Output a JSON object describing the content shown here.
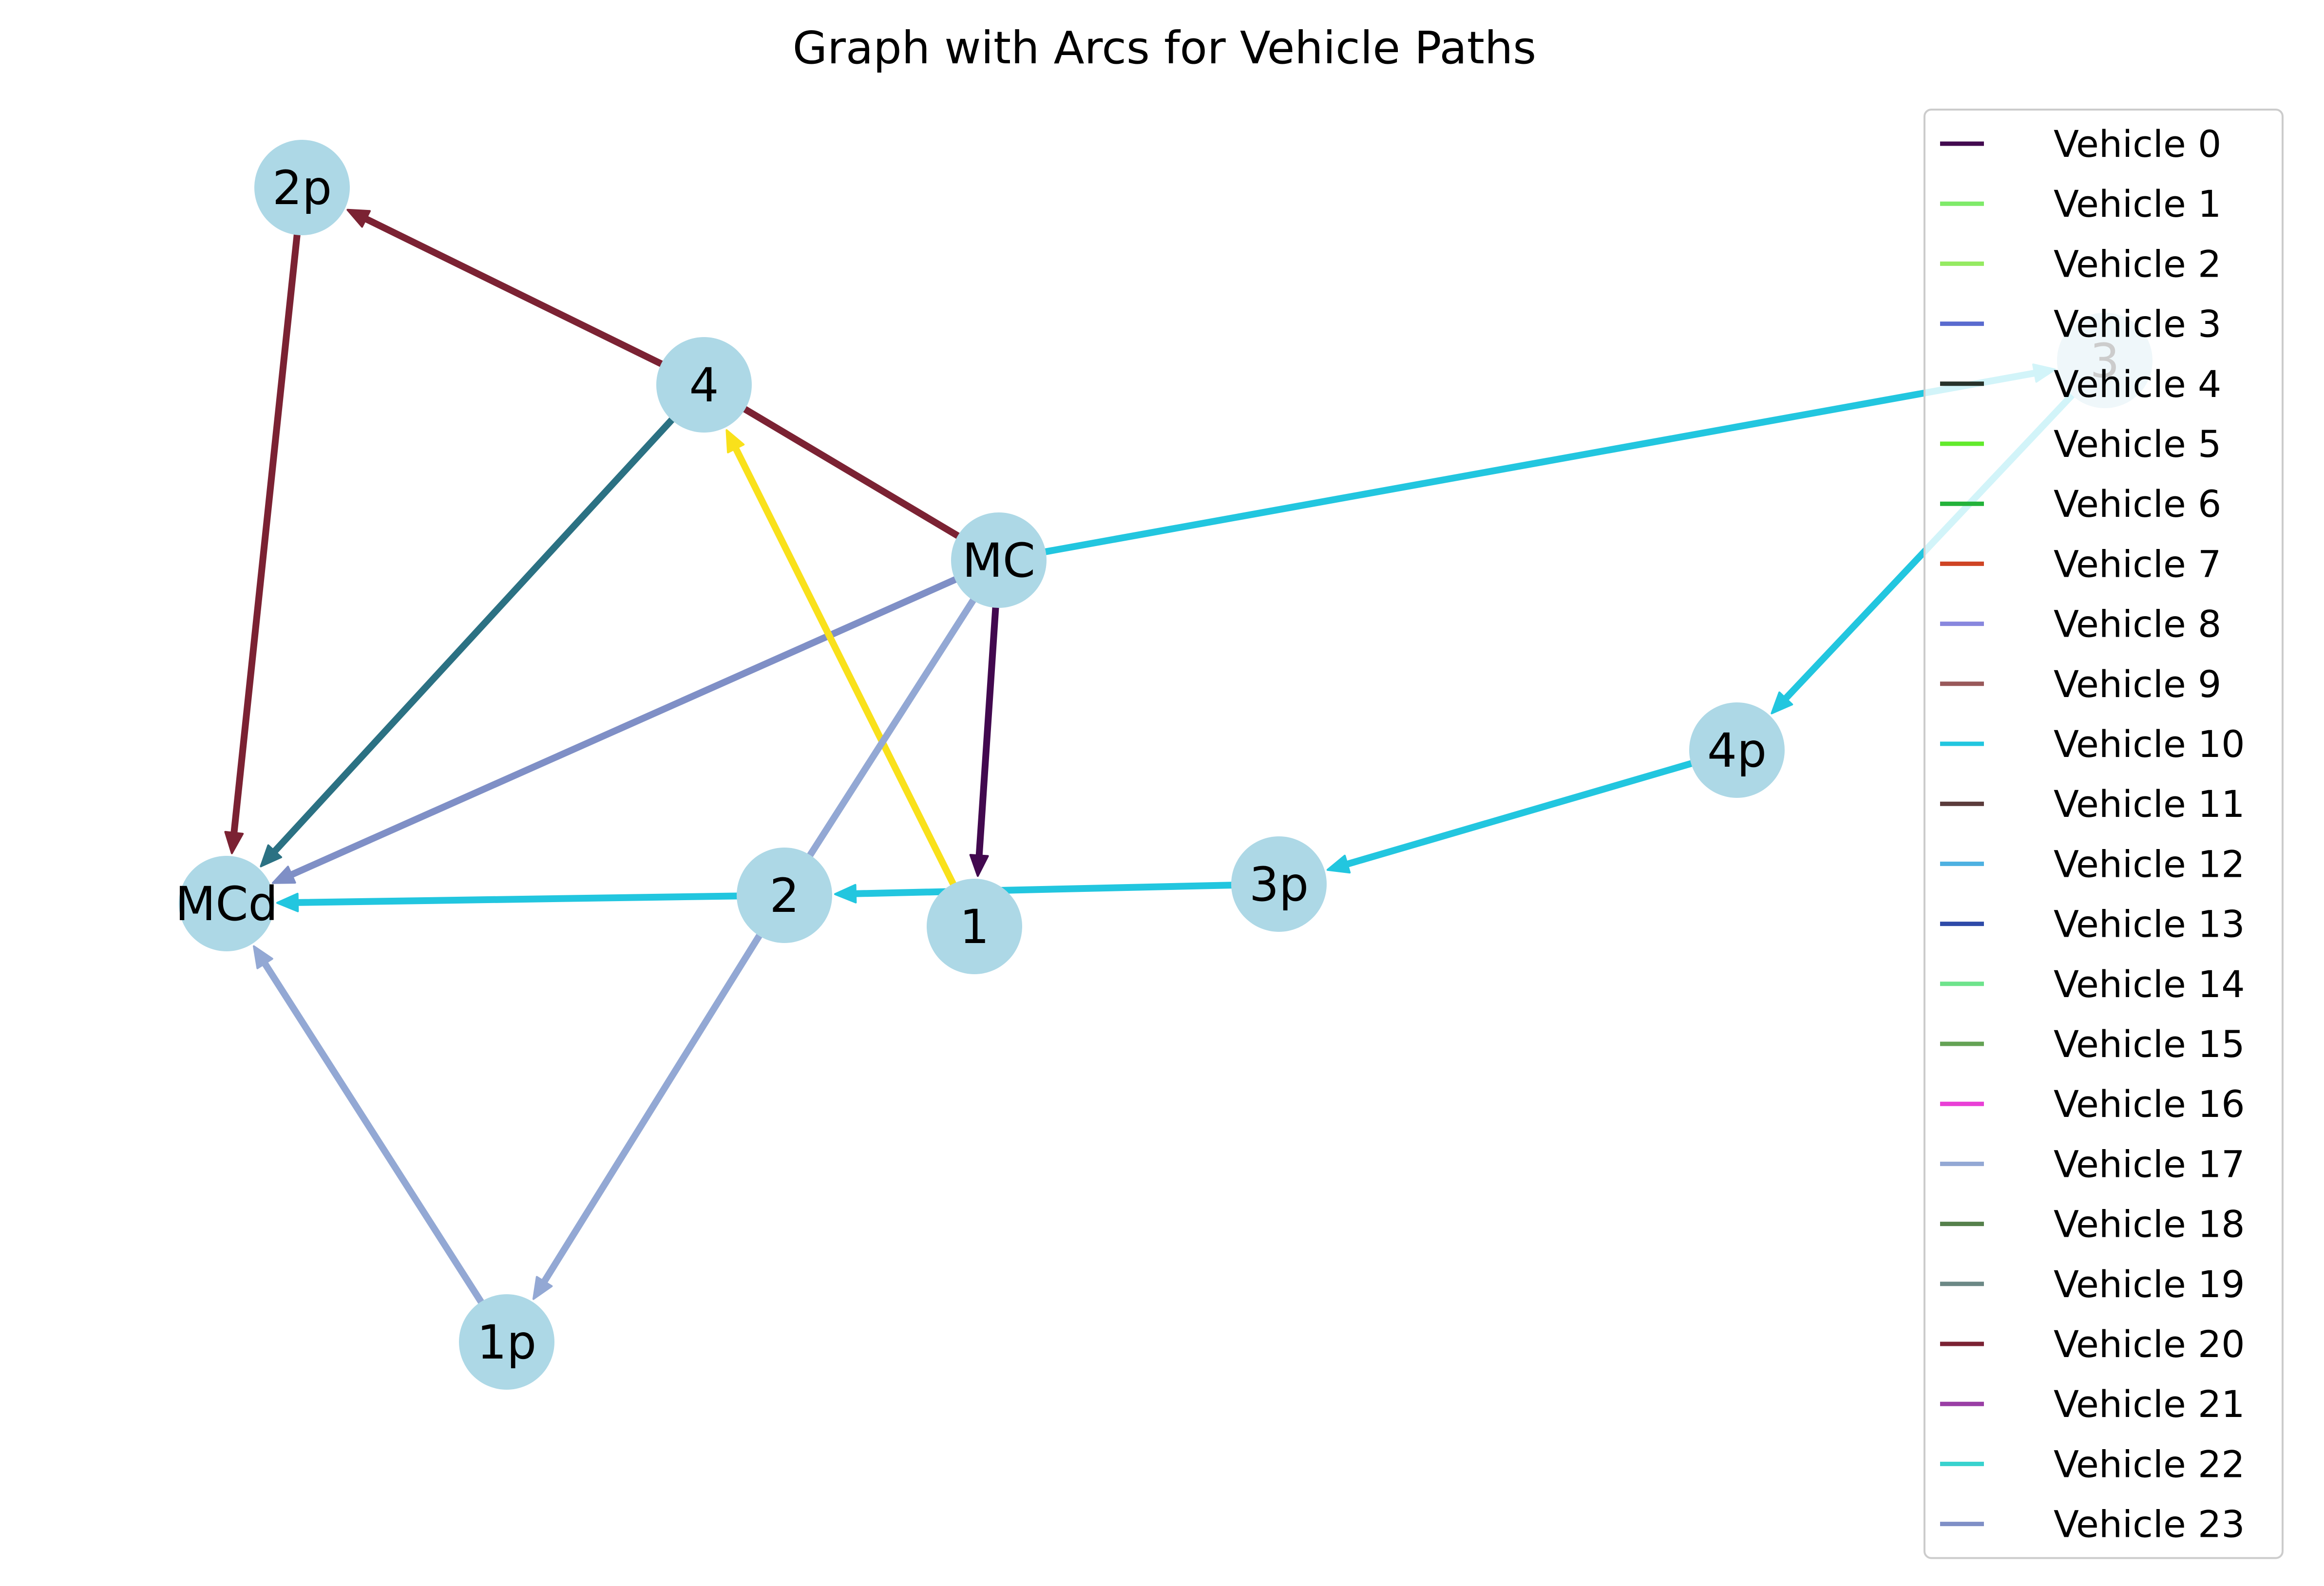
{
  "title": "Graph with Arcs for Vehicle Paths",
  "node_color": "#add8e6",
  "nodes": [
    {
      "id": "2p",
      "label": "2p"
    },
    {
      "id": "4",
      "label": "4"
    },
    {
      "id": "MC",
      "label": "MC"
    },
    {
      "id": "3",
      "label": "3"
    },
    {
      "id": "4p",
      "label": "4p"
    },
    {
      "id": "MCd",
      "label": "MCd"
    },
    {
      "id": "2",
      "label": "2"
    },
    {
      "id": "1",
      "label": "1"
    },
    {
      "id": "3p",
      "label": "3p"
    },
    {
      "id": "1p",
      "label": "1p"
    }
  ],
  "edges": [
    {
      "from": "MC",
      "to": "4",
      "color": "#7b2233",
      "arrow": false
    },
    {
      "from": "4",
      "to": "2p",
      "color": "#7b2233",
      "arrow": true
    },
    {
      "from": "2p",
      "to": "MCd",
      "color": "#7b2233",
      "arrow": true
    },
    {
      "from": "4",
      "to": "MCd",
      "color": "#2b7183",
      "arrow": true
    },
    {
      "from": "MC",
      "to": "MCd",
      "color": "#7f8fc6",
      "arrow": true
    },
    {
      "from": "1",
      "to": "4",
      "color": "#f9e11b",
      "arrow": true
    },
    {
      "from": "MC",
      "to": "1",
      "color": "#42094f",
      "arrow": true
    },
    {
      "from": "MC",
      "to": "2",
      "color": "#93a8d4",
      "arrow": false
    },
    {
      "from": "2",
      "to": "1p",
      "color": "#93a8d4",
      "arrow": true
    },
    {
      "from": "1p",
      "to": "MCd",
      "color": "#93a8d4",
      "arrow": true
    },
    {
      "from": "MC",
      "to": "3",
      "color": "#22c6df",
      "arrow": true
    },
    {
      "from": "3",
      "to": "4p",
      "color": "#22c6df",
      "arrow": true
    },
    {
      "from": "4p",
      "to": "3p",
      "color": "#22c6df",
      "arrow": true
    },
    {
      "from": "3p",
      "to": "2",
      "color": "#22c6df",
      "arrow": true
    },
    {
      "from": "2",
      "to": "MCd",
      "color": "#22c6df",
      "arrow": true
    }
  ],
  "legend": {
    "placement": "right",
    "items": [
      {
        "label": "Vehicle 0",
        "color": "#42094f"
      },
      {
        "label": "Vehicle 1",
        "color": "#7fea6a"
      },
      {
        "label": "Vehicle 2",
        "color": "#95ea62"
      },
      {
        "label": "Vehicle 3",
        "color": "#5a6bcf"
      },
      {
        "label": "Vehicle 4",
        "color": "#27322a"
      },
      {
        "label": "Vehicle 5",
        "color": "#62ea2c"
      },
      {
        "label": "Vehicle 6",
        "color": "#23b23a"
      },
      {
        "label": "Vehicle 7",
        "color": "#cf4424"
      },
      {
        "label": "Vehicle 8",
        "color": "#8887de"
      },
      {
        "label": "Vehicle 9",
        "color": "#99585a"
      },
      {
        "label": "Vehicle 10",
        "color": "#22c6df"
      },
      {
        "label": "Vehicle 11",
        "color": "#5b3b3b"
      },
      {
        "label": "Vehicle 12",
        "color": "#4eb1e1"
      },
      {
        "label": "Vehicle 13",
        "color": "#2e4aa8"
      },
      {
        "label": "Vehicle 14",
        "color": "#6ee38c"
      },
      {
        "label": "Vehicle 15",
        "color": "#64a254"
      },
      {
        "label": "Vehicle 16",
        "color": "#e93fd6"
      },
      {
        "label": "Vehicle 17",
        "color": "#93a8d4"
      },
      {
        "label": "Vehicle 18",
        "color": "#55804b"
      },
      {
        "label": "Vehicle 19",
        "color": "#6c8885"
      },
      {
        "label": "Vehicle 20",
        "color": "#7b2233"
      },
      {
        "label": "Vehicle 21",
        "color": "#9a3ea5"
      },
      {
        "label": "Vehicle 22",
        "color": "#38d2ce"
      },
      {
        "label": "Vehicle 23",
        "color": "#7f8fc6"
      }
    ]
  }
}
